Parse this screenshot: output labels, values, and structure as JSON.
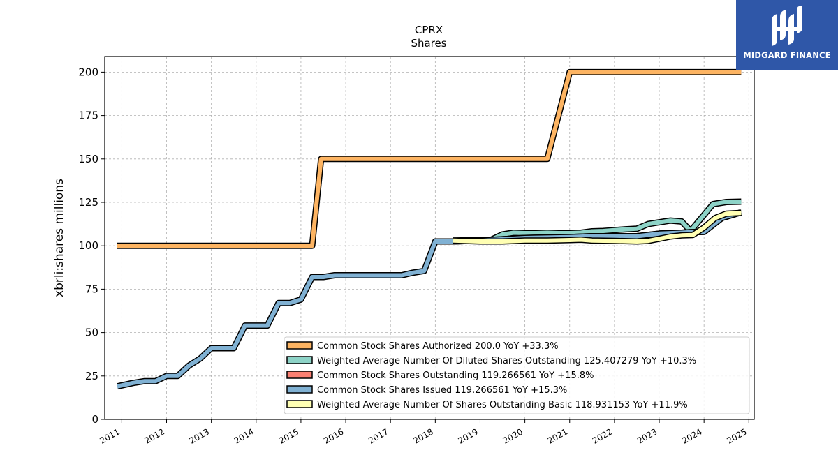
{
  "brand": {
    "name": "MIDGARD FINANCE",
    "color": "#2f57a8"
  },
  "chart_data": {
    "type": "line",
    "title": "CPRX",
    "subtitle": "Shares",
    "xlabel": "",
    "ylabel": "xbrli:shares millions",
    "xlim": [
      2010.62,
      2025.12
    ],
    "ylim": [
      0,
      209
    ],
    "x_ticks": [
      "2011",
      "2012",
      "2013",
      "2014",
      "2015",
      "2016",
      "2017",
      "2018",
      "2019",
      "2020",
      "2021",
      "2022",
      "2023",
      "2024",
      "2025"
    ],
    "y_ticks": [
      0,
      25,
      50,
      75,
      100,
      125,
      150,
      175,
      200
    ],
    "grid": true,
    "legend_position": "lower-right",
    "series": [
      {
        "name": "Common Stock Shares Authorized",
        "legend_label": "Common Stock Shares Authorized  200.0 YoY +33.3%",
        "color": "#fdb462",
        "points": [
          [
            2010.9,
            100
          ],
          [
            2015.25,
            100
          ],
          [
            2015.45,
            150
          ],
          [
            2020.5,
            150
          ],
          [
            2021.0,
            200
          ],
          [
            2024.83,
            200
          ]
        ]
      },
      {
        "name": "Weighted Average Number Of Diluted Shares Outstanding",
        "legend_label": "Weighted Average Number Of Diluted Shares Outstanding  125.407279 YoY +10.3%",
        "color": "#8dd3c7",
        "points": [
          [
            2018.4,
            103
          ],
          [
            2019.25,
            103.5
          ],
          [
            2019.5,
            106.5
          ],
          [
            2019.75,
            107.5
          ],
          [
            2020.0,
            107.3
          ],
          [
            2020.25,
            107.3
          ],
          [
            2020.5,
            107.5
          ],
          [
            2020.75,
            107.3
          ],
          [
            2021.0,
            107.3
          ],
          [
            2021.25,
            107.5
          ],
          [
            2021.5,
            108.3
          ],
          [
            2021.75,
            108.5
          ],
          [
            2022.0,
            109
          ],
          [
            2022.25,
            109.5
          ],
          [
            2022.5,
            109.8
          ],
          [
            2022.75,
            112.5
          ],
          [
            2023.0,
            113.5
          ],
          [
            2023.25,
            114.5
          ],
          [
            2023.5,
            114
          ],
          [
            2023.7,
            108.5
          ],
          [
            2024.2,
            124
          ],
          [
            2024.5,
            125.2
          ],
          [
            2024.83,
            125.4
          ]
        ]
      },
      {
        "name": "Common Stock Shares Outstanding",
        "legend_label": "Common Stock Shares Outstanding  119.266561 YoY +15.8%",
        "color": "#fb8072",
        "points": [
          [
            2018.0,
            102.5
          ],
          [
            2018.4,
            102.5
          ],
          [
            2019.0,
            103
          ],
          [
            2020.0,
            104.5
          ],
          [
            2021.0,
            105
          ],
          [
            2021.5,
            105.5
          ],
          [
            2022.0,
            105.5
          ],
          [
            2022.5,
            105.5
          ],
          [
            2023.0,
            107
          ],
          [
            2023.5,
            107.5
          ],
          [
            2023.7,
            107.8
          ],
          [
            2024.0,
            108
          ],
          [
            2024.4,
            116
          ],
          [
            2024.83,
            119.27
          ]
        ]
      },
      {
        "name": "Common Stock Shares Issued",
        "legend_label": "Common Stock Shares Issued  119.266561 YoY +15.3%",
        "color": "#80b1d3",
        "points": [
          [
            2010.9,
            19
          ],
          [
            2011.25,
            21
          ],
          [
            2011.5,
            22
          ],
          [
            2011.75,
            22
          ],
          [
            2012.0,
            25
          ],
          [
            2012.25,
            25
          ],
          [
            2012.5,
            31
          ],
          [
            2012.75,
            35
          ],
          [
            2013.0,
            41
          ],
          [
            2013.5,
            41
          ],
          [
            2013.75,
            54
          ],
          [
            2014.25,
            54
          ],
          [
            2014.5,
            67
          ],
          [
            2014.75,
            67
          ],
          [
            2015.0,
            69
          ],
          [
            2015.25,
            82
          ],
          [
            2015.5,
            82
          ],
          [
            2015.75,
            83
          ],
          [
            2016.0,
            83
          ],
          [
            2017.25,
            83
          ],
          [
            2017.5,
            84.5
          ],
          [
            2017.75,
            85.5
          ],
          [
            2018.0,
            102.5
          ],
          [
            2018.4,
            102.5
          ],
          [
            2019.0,
            103
          ],
          [
            2020.0,
            104.5
          ],
          [
            2021.0,
            105
          ],
          [
            2021.5,
            105.5
          ],
          [
            2022.0,
            105.5
          ],
          [
            2022.5,
            105.5
          ],
          [
            2023.0,
            107
          ],
          [
            2023.5,
            107.5
          ],
          [
            2023.7,
            107.8
          ],
          [
            2024.0,
            108
          ],
          [
            2024.4,
            116
          ],
          [
            2024.83,
            119.27
          ]
        ]
      },
      {
        "name": "Weighted Average Number Of Shares Outstanding Basic",
        "legend_label": "Weighted Average Number Of Shares Outstanding Basic  118.931153 YoY +11.9%",
        "color": "#ffffb3",
        "points": [
          [
            2018.4,
            103
          ],
          [
            2019.0,
            102.5
          ],
          [
            2019.5,
            102.5
          ],
          [
            2020.0,
            103
          ],
          [
            2020.5,
            103
          ],
          [
            2021.0,
            103.3
          ],
          [
            2021.25,
            103.5
          ],
          [
            2021.5,
            103
          ],
          [
            2022.0,
            102.8
          ],
          [
            2022.5,
            102.5
          ],
          [
            2022.75,
            102.8
          ],
          [
            2023.0,
            104
          ],
          [
            2023.25,
            105.3
          ],
          [
            2023.5,
            106
          ],
          [
            2023.75,
            106.2
          ],
          [
            2024.0,
            110.5
          ],
          [
            2024.25,
            116
          ],
          [
            2024.5,
            118.5
          ],
          [
            2024.83,
            118.93
          ]
        ]
      }
    ]
  }
}
